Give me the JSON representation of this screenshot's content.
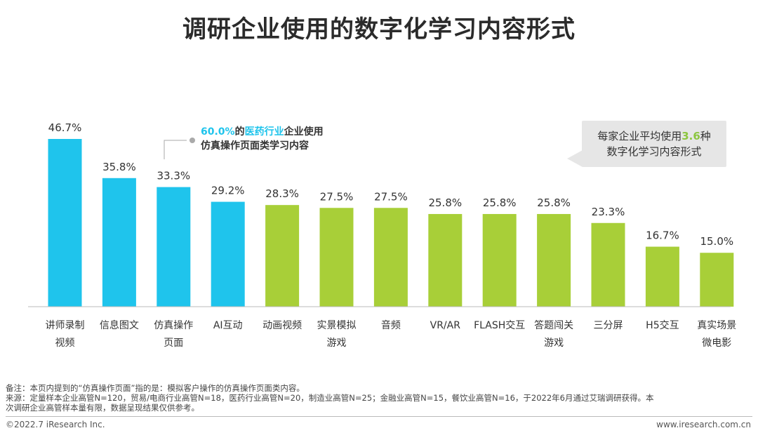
{
  "title": "调研企业使用的数字化学习内容形式",
  "chart_data": {
    "type": "bar",
    "categories": [
      [
        "讲师录制",
        "视频"
      ],
      [
        "信息图文"
      ],
      [
        "仿真操作",
        "页面"
      ],
      [
        "AI互动"
      ],
      [
        "动画视频"
      ],
      [
        "实景模拟",
        "游戏"
      ],
      [
        "音频"
      ],
      [
        "VR/AR"
      ],
      [
        "FLASH交互"
      ],
      [
        "答题闯关",
        "游戏"
      ],
      [
        "三分屏"
      ],
      [
        "H5交互"
      ],
      [
        "真实场景",
        "微电影"
      ]
    ],
    "values": [
      46.7,
      35.8,
      33.3,
      29.2,
      28.3,
      27.5,
      27.5,
      25.8,
      25.8,
      25.8,
      23.3,
      16.7,
      15.0
    ],
    "value_labels": [
      "46.7%",
      "35.8%",
      "33.3%",
      "29.2%",
      "28.3%",
      "27.5%",
      "27.5%",
      "25.8%",
      "25.8%",
      "25.8%",
      "23.3%",
      "16.7%",
      "15.0%"
    ],
    "colors": [
      "#1fc4ec",
      "#1fc4ec",
      "#1fc4ec",
      "#1fc4ec",
      "#a8cf38",
      "#a8cf38",
      "#a8cf38",
      "#a8cf38",
      "#a8cf38",
      "#a8cf38",
      "#a8cf38",
      "#a8cf38",
      "#a8cf38"
    ],
    "ylim": [
      0,
      50
    ],
    "xlabel": "",
    "ylabel": ""
  },
  "callout": {
    "percent": "60.0%",
    "mid": "的",
    "industry": "医药行业",
    "rest1": "企业使用",
    "line2": "仿真操作页面类学习内容"
  },
  "average_box": {
    "pre": "每家企业平均使用",
    "num": "3.6",
    "post": "种",
    "line2": "数字化学习内容形式"
  },
  "notes": {
    "line1": "备注：本页内提到的“仿真操作页面”指的是：模拟客户操作的仿真操作页面类内容。",
    "line2": "来源：定量样本企业高管N=120，贸易/电商行业高管N=18，医药行业高管N=20，制造业高管N=25；金融业高管N=15，餐饮业高管N=16，于2022年6月通过艾瑞调研获得。本",
    "line3": "次调研企业高管样本量有限，数据呈现结果仅供参考。"
  },
  "footer": {
    "copyright": "©2022.7 iResearch Inc.",
    "website": "www.iresearch.com.cn"
  }
}
